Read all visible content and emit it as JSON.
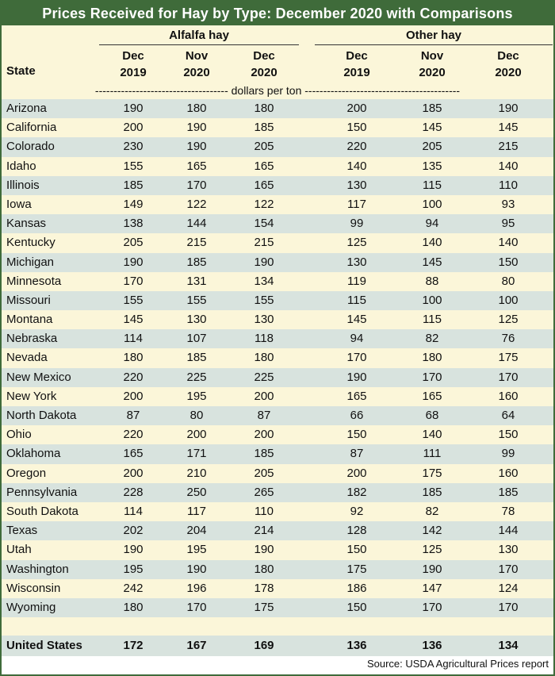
{
  "title": "Prices Received for Hay by Type: December 2020 with Comparisons",
  "groups": {
    "alfalfa": "Alfalfa hay",
    "other": "Other hay"
  },
  "header": {
    "state": "State",
    "cols": [
      [
        "Dec",
        "2019"
      ],
      [
        "Nov",
        "2020"
      ],
      [
        "Dec",
        "2020"
      ],
      [
        "Dec",
        "2019"
      ],
      [
        "Nov",
        "2020"
      ],
      [
        "Dec",
        "2020"
      ]
    ]
  },
  "units": "------------------------------------ dollars per ton ------------------------------------------",
  "rows": [
    [
      "Arizona",
      "190",
      "180",
      "180",
      "200",
      "185",
      "190"
    ],
    [
      "California",
      "200",
      "190",
      "185",
      "150",
      "145",
      "145"
    ],
    [
      "Colorado",
      "230",
      "190",
      "205",
      "220",
      "205",
      "215"
    ],
    [
      "Idaho",
      "155",
      "165",
      "165",
      "140",
      "135",
      "140"
    ],
    [
      "Illinois",
      "185",
      "170",
      "165",
      "130",
      "115",
      "110"
    ],
    [
      "Iowa",
      "149",
      "122",
      "122",
      "117",
      "100",
      "93"
    ],
    [
      "Kansas",
      "138",
      "144",
      "154",
      "99",
      "94",
      "95"
    ],
    [
      "Kentucky",
      "205",
      "215",
      "215",
      "125",
      "140",
      "140"
    ],
    [
      "Michigan",
      "190",
      "185",
      "190",
      "130",
      "145",
      "150"
    ],
    [
      "Minnesota",
      "170",
      "131",
      "134",
      "119",
      "88",
      "80"
    ],
    [
      "Missouri",
      "155",
      "155",
      "155",
      "115",
      "100",
      "100"
    ],
    [
      "Montana",
      "145",
      "130",
      "130",
      "145",
      "115",
      "125"
    ],
    [
      "Nebraska",
      "114",
      "107",
      "118",
      "94",
      "82",
      "76"
    ],
    [
      "Nevada",
      "180",
      "185",
      "180",
      "170",
      "180",
      "175"
    ],
    [
      "New Mexico",
      "220",
      "225",
      "225",
      "190",
      "170",
      "170"
    ],
    [
      "New York",
      "200",
      "195",
      "200",
      "165",
      "165",
      "160"
    ],
    [
      "North Dakota",
      "87",
      "80",
      "87",
      "66",
      "68",
      "64"
    ],
    [
      "Ohio",
      "220",
      "200",
      "200",
      "150",
      "140",
      "150"
    ],
    [
      "Oklahoma",
      "165",
      "171",
      "185",
      "87",
      "111",
      "99"
    ],
    [
      "Oregon",
      "200",
      "210",
      "205",
      "200",
      "175",
      "160"
    ],
    [
      "Pennsylvania",
      "228",
      "250",
      "265",
      "182",
      "185",
      "185"
    ],
    [
      "South Dakota",
      "114",
      "117",
      "110",
      "92",
      "82",
      "78"
    ],
    [
      "Texas",
      "202",
      "204",
      "214",
      "128",
      "142",
      "144"
    ],
    [
      "Utah",
      "190",
      "195",
      "190",
      "150",
      "125",
      "130"
    ],
    [
      "Washington",
      "195",
      "190",
      "180",
      "175",
      "190",
      "170"
    ],
    [
      "Wisconsin",
      "242",
      "196",
      "178",
      "186",
      "147",
      "124"
    ],
    [
      "Wyoming",
      "180",
      "170",
      "175",
      "150",
      "170",
      "170"
    ]
  ],
  "total": [
    "United States",
    "172",
    "167",
    "169",
    "136",
    "136",
    "134"
  ],
  "source": "Source: USDA Agricultural Prices report"
}
